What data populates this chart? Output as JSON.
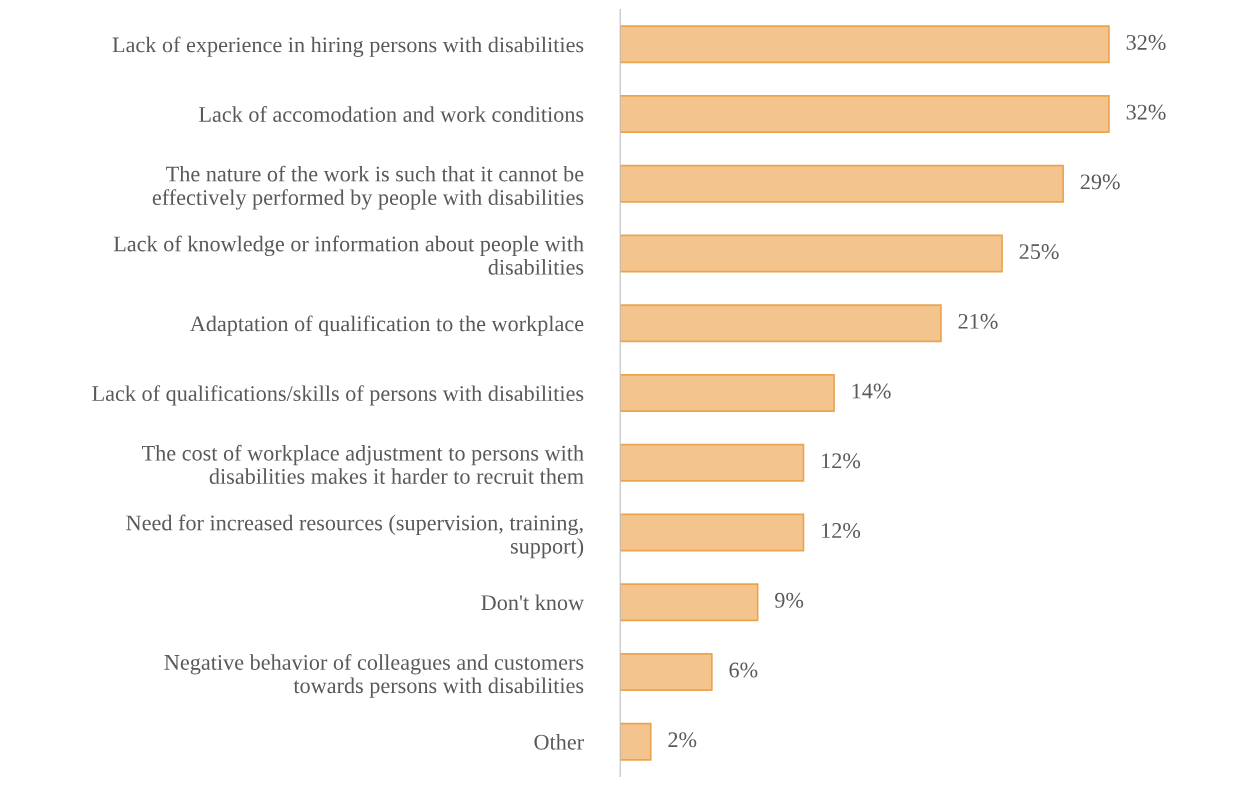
{
  "chart_data": {
    "type": "bar",
    "orientation": "horizontal",
    "categories": [
      "Lack of experience in hiring persons with disabilities",
      "Lack of accomodation and work conditions",
      "The nature of the work is such that it cannot be\neffectively performed by people with disabilities",
      "Lack of knowledge or information about people with\ndisabilities",
      "Adaptation of qualification to the workplace",
      "Lack of qualifications/skills of persons with disabilities",
      "The cost of workplace adjustment to persons with\ndisabilities makes it harder to recruit them",
      "Need for increased resources (supervision, training,\nsupport)",
      "Don't know",
      "Negative behavior of colleagues and customers\ntowards persons with disabilities",
      "Other"
    ],
    "values": [
      32,
      32,
      29,
      25,
      21,
      14,
      12,
      12,
      9,
      6,
      2
    ],
    "value_labels": [
      "32%",
      "32%",
      "29%",
      "25%",
      "21%",
      "14%",
      "12%",
      "12%",
      "9%",
      "6%",
      "2%"
    ],
    "color": "#f4c48f",
    "grid": false,
    "legend": false
  }
}
